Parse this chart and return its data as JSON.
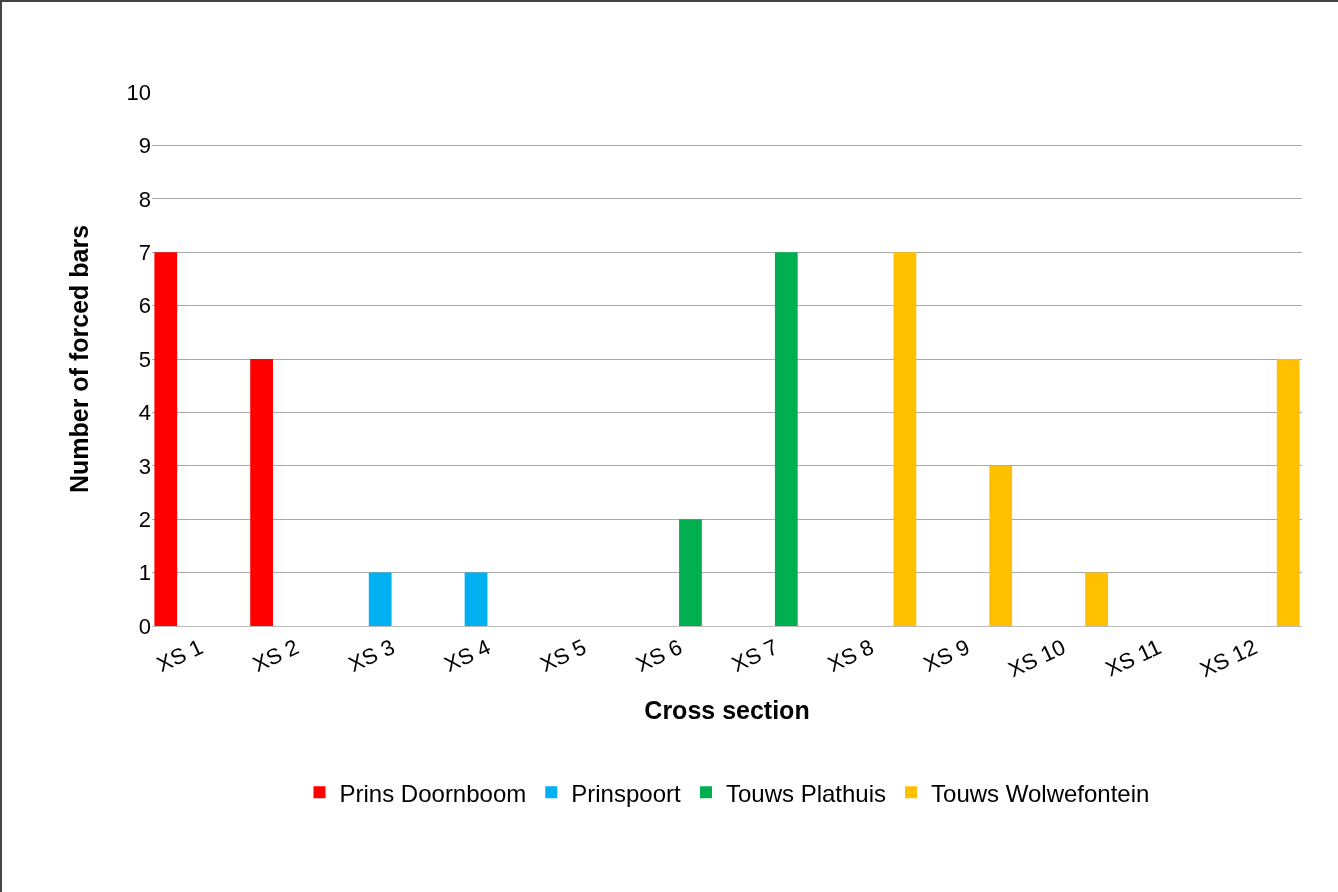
{
  "chart_data": {
    "type": "bar",
    "xlabel": "Cross section",
    "ylabel": "Number of forced bars",
    "categories": [
      "XS 1",
      "XS 2",
      "XS 3",
      "XS 4",
      "XS 5",
      "XS 6",
      "XS 7",
      "XS 8",
      "XS 9",
      "XS 10",
      "XS 11",
      "XS 12"
    ],
    "series": [
      {
        "name": "Prins Doornboom",
        "color": "#ff0000",
        "values": [
          7,
          5,
          0,
          0,
          0,
          0,
          0,
          0,
          0,
          0,
          0,
          0
        ]
      },
      {
        "name": "Prinspoort",
        "color": "#00b0f0",
        "values": [
          0,
          0,
          1,
          1,
          0,
          0,
          0,
          0,
          0,
          0,
          0,
          0
        ]
      },
      {
        "name": "Touws Plathuis",
        "color": "#00b050",
        "values": [
          0,
          0,
          0,
          0,
          0,
          2,
          7,
          0,
          0,
          0,
          0,
          0
        ]
      },
      {
        "name": "Touws Wolwefontein",
        "color": "#ffc000",
        "values": [
          0,
          0,
          0,
          0,
          0,
          0,
          0,
          7,
          3,
          1,
          0,
          5
        ]
      }
    ],
    "ylim": [
      0,
      10
    ],
    "yticks": [
      0,
      1,
      2,
      3,
      4,
      5,
      6,
      7,
      8,
      9,
      10
    ],
    "grid": "y",
    "legend": "bottom"
  }
}
